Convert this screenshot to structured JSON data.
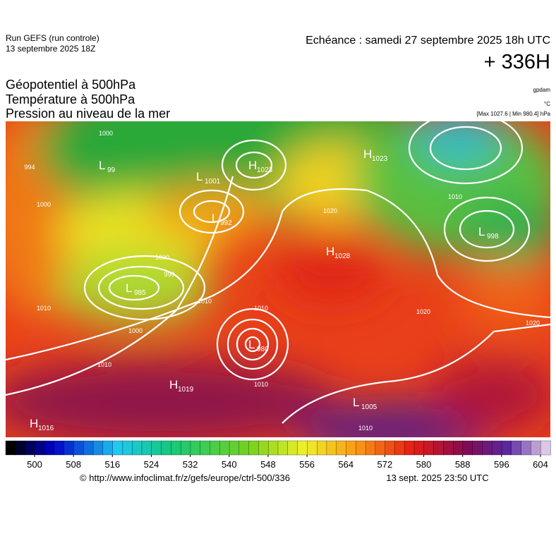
{
  "header": {
    "run": "Run GEFS (run controle)",
    "run_date": "13 septembre 2025 18Z",
    "echeance": "Echéance : samedi 27 septembre 2025 18h UTC",
    "lead": "+ 336H"
  },
  "titles": [
    "Géopotentiel à 500hPa",
    "Température à 500hPa",
    "Pression au niveau de la mer"
  ],
  "units": [
    "gpdam",
    "°C",
    "[Max 1027.6 | Min 980.4] hPa"
  ],
  "pressure_centers": [
    {
      "kind": "L",
      "value": "99"
    },
    {
      "kind": "H",
      "value": "1023"
    },
    {
      "kind": "L",
      "value": "1001"
    },
    {
      "kind": "L",
      "value": "992"
    },
    {
      "kind": "H",
      "value": "1023"
    },
    {
      "kind": "L",
      "value": "998"
    },
    {
      "kind": "H",
      "value": "1028"
    },
    {
      "kind": "L",
      "value": "985"
    },
    {
      "kind": "L",
      "value": "980"
    },
    {
      "kind": "H",
      "value": "1019"
    },
    {
      "kind": "L",
      "value": "1005"
    },
    {
      "kind": "H",
      "value": "1016"
    }
  ],
  "isobar_labels": [
    "994",
    "1000",
    "1000",
    "1000",
    "990",
    "1010",
    "1000",
    "1010",
    "1010",
    "1010",
    "1020",
    "1010",
    "1020",
    "1010",
    "1020",
    "1010"
  ],
  "colorbar": {
    "ticks": [
      500,
      508,
      516,
      524,
      532,
      540,
      548,
      556,
      564,
      572,
      580,
      588,
      596,
      604
    ]
  },
  "footer": {
    "url": "© http://www.infoclimat.fr/z/gefs/europe/ctrl-500/336",
    "generated": "13 sept. 2025 23:50 UTC"
  }
}
